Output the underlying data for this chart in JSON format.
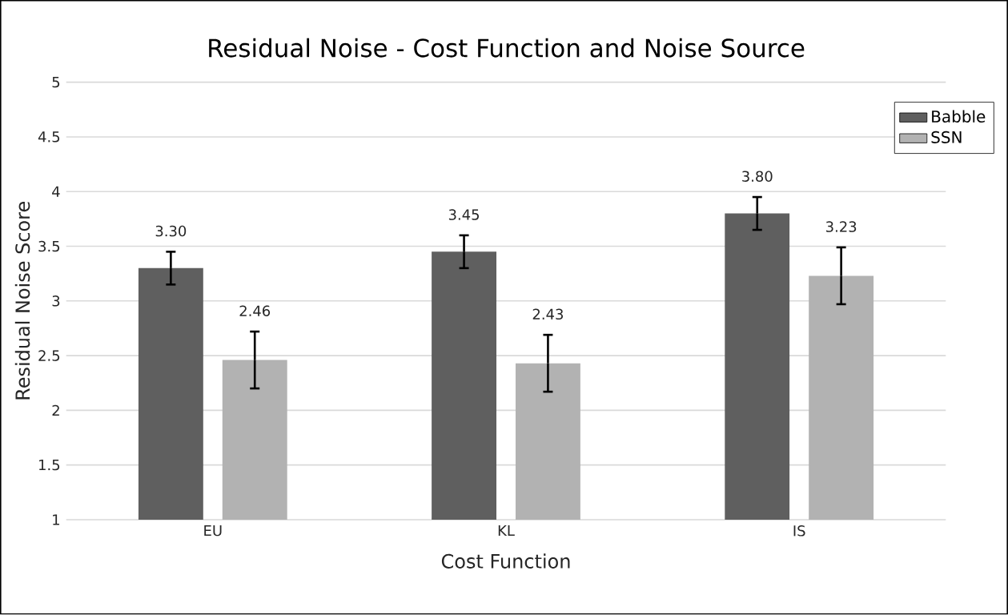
{
  "chart_data": {
    "type": "bar",
    "title": "Residual Noise - Cost Function and Noise Source",
    "xlabel": "Cost Function",
    "ylabel": "Residual Noise Score",
    "categories": [
      "EU",
      "KL",
      "IS"
    ],
    "series": [
      {
        "name": "Babble",
        "color": "#5f5f5f",
        "values": [
          3.3,
          3.45,
          3.8
        ],
        "errors": [
          0.15,
          0.15,
          0.15
        ],
        "value_labels": [
          "3.30",
          "3.45",
          "3.80"
        ]
      },
      {
        "name": "SSN",
        "color": "#b2b2b2",
        "values": [
          2.46,
          2.43,
          3.23
        ],
        "errors": [
          0.26,
          0.26,
          0.26
        ],
        "value_labels": [
          "2.46",
          "2.43",
          "3.23"
        ]
      }
    ],
    "ylim": [
      1,
      5
    ],
    "yticks": [
      1,
      1.5,
      2,
      2.5,
      3,
      3.5,
      4,
      4.5,
      5
    ],
    "grid": "y",
    "legend": "top right"
  }
}
